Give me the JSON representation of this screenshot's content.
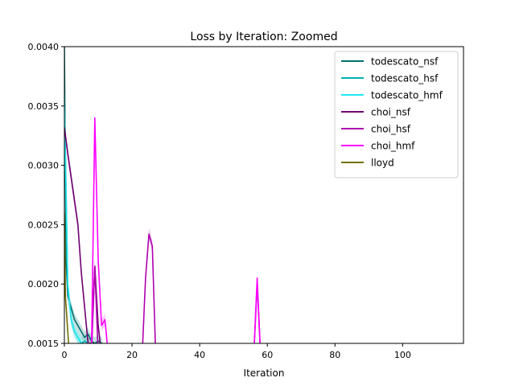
{
  "chart_data": {
    "type": "line",
    "title": "Loss by Iteration: Zoomed",
    "xlabel": "Iteration",
    "ylabel": "",
    "xlim": [
      0,
      118
    ],
    "ylim": [
      0.0015,
      0.004
    ],
    "xticks": [
      0,
      20,
      40,
      60,
      80,
      100
    ],
    "yticks": [
      0.0015,
      0.002,
      0.0025,
      0.003,
      0.0035,
      0.004
    ],
    "ytick_labels": [
      "0.0015",
      "0.0020",
      "0.0025",
      "0.0030",
      "0.0035",
      "0.0040"
    ],
    "grid": false,
    "legend_position": "top-right",
    "series": [
      {
        "name": "todescato_nsf",
        "color": "#007070",
        "x": [
          0,
          0.5,
          1,
          2,
          3,
          4,
          5,
          6,
          7,
          8,
          9,
          10,
          11,
          12
        ],
        "y": [
          0.004,
          0.0022,
          0.0019,
          0.0018,
          0.0017,
          0.00165,
          0.0016,
          0.00155,
          0.00158,
          0.00152,
          0.0015,
          0.00152,
          0.0015,
          0.0014
        ]
      },
      {
        "name": "todescato_hsf",
        "color": "#00b0b0",
        "x": [
          0,
          1,
          2,
          3,
          4,
          5,
          6,
          7,
          8
        ],
        "y": [
          0.0036,
          0.002,
          0.0017,
          0.0016,
          0.00155,
          0.0015,
          0.00152,
          0.0015,
          0.0014
        ]
      },
      {
        "name": "todescato_hmf",
        "color": "#20e8ee",
        "x": [
          0,
          1,
          2,
          3,
          4,
          5,
          6
        ],
        "y": [
          0.0035,
          0.002,
          0.0017,
          0.0016,
          0.00155,
          0.0015,
          0.0014
        ]
      },
      {
        "name": "choi_nsf",
        "color": "#700070",
        "x": [
          0,
          1,
          2,
          3,
          4,
          5,
          6,
          7,
          8,
          9,
          10,
          11
        ],
        "y": [
          0.00332,
          0.0031,
          0.0029,
          0.0027,
          0.0025,
          0.0021,
          0.0018,
          0.0015,
          0.0015,
          0.00215,
          0.00165,
          0.0014
        ]
      },
      {
        "name": "choi_hsf",
        "color": "#b000b0",
        "x": [
          8,
          9,
          10,
          23,
          24,
          25,
          26,
          27,
          56,
          57,
          58
        ],
        "y": [
          0.0014,
          0.00215,
          0.0014,
          0.0014,
          0.00205,
          0.00242,
          0.00232,
          0.0014,
          0.0014,
          0.002,
          0.0014
        ]
      },
      {
        "name": "choi_hmf",
        "color": "#ff00ff",
        "x": [
          8,
          9,
          10,
          11,
          12,
          13,
          56,
          57,
          58
        ],
        "y": [
          0.0014,
          0.0034,
          0.0022,
          0.00165,
          0.0017,
          0.0014,
          0.0014,
          0.00205,
          0.0014
        ]
      },
      {
        "name": "lloyd",
        "color": "#707000",
        "x": [
          0,
          0.3,
          1,
          1.5
        ],
        "y": [
          0.0026,
          0.0019,
          0.0016,
          0.0014
        ]
      }
    ]
  }
}
